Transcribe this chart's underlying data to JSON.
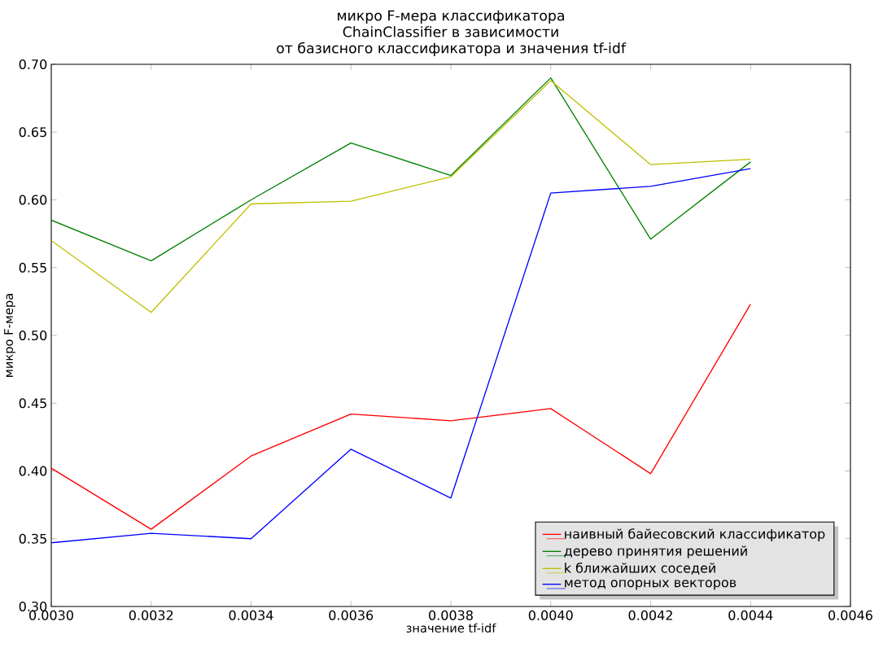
{
  "chart_data": {
    "type": "line",
    "title": "микро F-мера классификатора\nChainClassifier в зависимости\nот базисного классификатора и значения tf-idf",
    "xlabel": "значение tf-idf",
    "ylabel": "микро F-мера",
    "x": [
      0.003,
      0.0032,
      0.0034,
      0.0036,
      0.0038,
      0.004,
      0.0042,
      0.0044
    ],
    "series": [
      {
        "name": "наивный байесовский классификатор",
        "color": "#ff0000",
        "values": [
          0.402,
          0.357,
          0.411,
          0.442,
          0.437,
          0.446,
          0.398,
          0.523
        ]
      },
      {
        "name": "дерево принятия решений",
        "color": "#008000",
        "values": [
          0.585,
          0.555,
          0.6,
          0.642,
          0.618,
          0.69,
          0.571,
          0.628
        ]
      },
      {
        "name": "k ближайших соседей",
        "color": "#bfbf00",
        "values": [
          0.57,
          0.517,
          0.597,
          0.599,
          0.617,
          0.688,
          0.626,
          0.63
        ]
      },
      {
        "name": "метод опорных векторов",
        "color": "#0000ff",
        "values": [
          0.347,
          0.354,
          0.35,
          0.416,
          0.38,
          0.605,
          0.61,
          0.623
        ]
      }
    ],
    "xlim": [
      0.003,
      0.0046
    ],
    "xticks": [
      {
        "value": 0.003,
        "label": "0.0030"
      },
      {
        "value": 0.0032,
        "label": "0.0032"
      },
      {
        "value": 0.0034,
        "label": "0.0034"
      },
      {
        "value": 0.0036,
        "label": "0.0036"
      },
      {
        "value": 0.0038,
        "label": "0.0038"
      },
      {
        "value": 0.004,
        "label": "0.0040"
      },
      {
        "value": 0.0042,
        "label": "0.0042"
      },
      {
        "value": 0.0044,
        "label": "0.0044"
      },
      {
        "value": 0.0046,
        "label": "0.0046"
      }
    ],
    "ylim": [
      0.3,
      0.7
    ],
    "yticks": [
      {
        "value": 0.3,
        "label": "0.30"
      },
      {
        "value": 0.35,
        "label": "0.35"
      },
      {
        "value": 0.4,
        "label": "0.40"
      },
      {
        "value": 0.45,
        "label": "0.45"
      },
      {
        "value": 0.5,
        "label": "0.50"
      },
      {
        "value": 0.55,
        "label": "0.55"
      },
      {
        "value": 0.6,
        "label": "0.60"
      },
      {
        "value": 0.65,
        "label": "0.65"
      },
      {
        "value": 0.7,
        "label": "0.70"
      }
    ],
    "legend": "bottom right",
    "grid": false,
    "marker": "none",
    "line_style": "solid"
  }
}
